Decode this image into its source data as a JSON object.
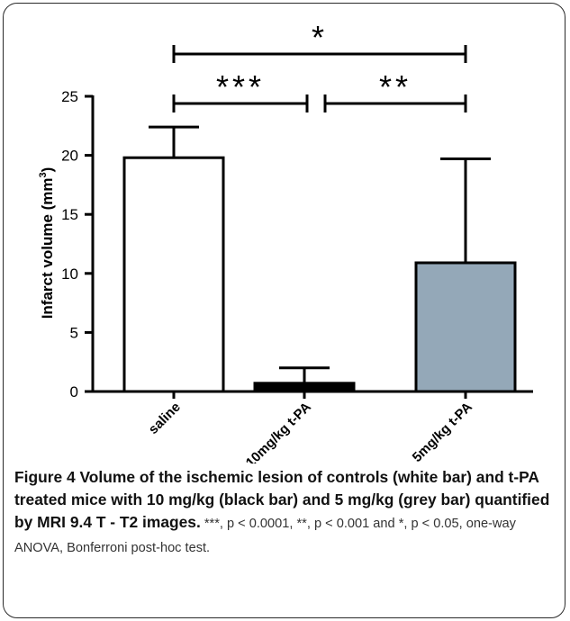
{
  "chart_data": {
    "type": "bar",
    "categories": [
      "saline",
      "10mg/kg t-PA",
      "5mg/kg t-PA"
    ],
    "values": [
      19.8,
      0.7,
      10.9
    ],
    "errors": [
      2.6,
      1.3,
      8.8
    ],
    "colors": [
      "#ffffff",
      "#000000",
      "#94a8b8"
    ],
    "ylabel": "Infarct volume (mm",
    "ylabel_sup": "3",
    "ylabel_close": ")",
    "ylim": [
      0,
      25
    ],
    "yticks": [
      0,
      5,
      10,
      15,
      20,
      25
    ],
    "significance": [
      {
        "from": 0,
        "to": 2,
        "label": "*"
      },
      {
        "from": 0,
        "to": 1,
        "label": "***"
      },
      {
        "from": 1,
        "to": 2,
        "label": "**"
      }
    ]
  },
  "caption": {
    "bold": "Figure 4 Volume of the ischemic lesion of controls (white bar) and t-PA treated mice with 10 mg/kg (black bar) and 5 mg/kg (grey bar) quantified by MRI 9.4 T - T2 images.",
    "body": " ***, p < 0.0001, **, p < 0.001 and *, p < 0.05, one-way ANOVA, Bonferroni post-hoc test."
  }
}
